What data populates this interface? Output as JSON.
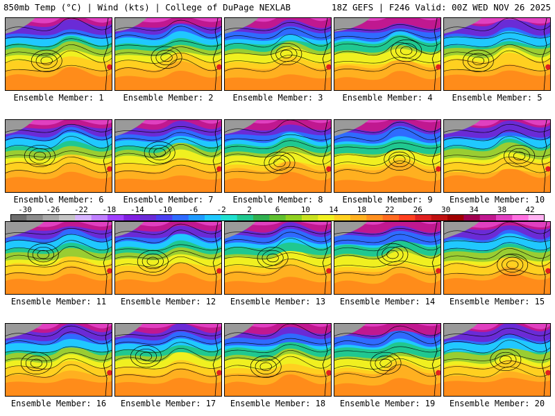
{
  "header": {
    "left": "850mb Temp (°C) | Wind (kts) | College of DuPage NEXLAB",
    "right": "18Z GEFS | F246 Valid: 00Z WED NOV 26 2025"
  },
  "members": [
    {
      "label": "Ensemble Member: 1"
    },
    {
      "label": "Ensemble Member: 2"
    },
    {
      "label": "Ensemble Member: 3"
    },
    {
      "label": "Ensemble Member: 4"
    },
    {
      "label": "Ensemble Member: 5"
    },
    {
      "label": "Ensemble Member: 6"
    },
    {
      "label": "Ensemble Member: 7"
    },
    {
      "label": "Ensemble Member: 8"
    },
    {
      "label": "Ensemble Member: 9"
    },
    {
      "label": "Ensemble Member: 10"
    },
    {
      "label": "Ensemble Member: 11"
    },
    {
      "label": "Ensemble Member: 12"
    },
    {
      "label": "Ensemble Member: 13"
    },
    {
      "label": "Ensemble Member: 14"
    },
    {
      "label": "Ensemble Member: 15"
    },
    {
      "label": "Ensemble Member: 16"
    },
    {
      "label": "Ensemble Member: 17"
    },
    {
      "label": "Ensemble Member: 18"
    },
    {
      "label": "Ensemble Member: 19"
    },
    {
      "label": "Ensemble Member: 20"
    }
  ],
  "colorbar": {
    "ticks": [
      "-30",
      "-26",
      "-22",
      "-18",
      "-14",
      "-10",
      "-6",
      "-2",
      "2",
      "6",
      "10",
      "14",
      "18",
      "22",
      "26",
      "30",
      "34",
      "38",
      "42"
    ],
    "colors": [
      "#6e6e6e",
      "#8c8c8c",
      "#a8a8a8",
      "#c4c4c4",
      "#d6b4ff",
      "#c080ff",
      "#a040ff",
      "#8020e0",
      "#6a2bd6",
      "#4b3ff0",
      "#2f6bff",
      "#1f9bff",
      "#20c8ff",
      "#20e0d0",
      "#20c890",
      "#30b050",
      "#60c030",
      "#90d020",
      "#c8e020",
      "#f0f020",
      "#ffd020",
      "#ffb020",
      "#ff9020",
      "#ff6a20",
      "#ff4020",
      "#e02020",
      "#c01010",
      "#a00000",
      "#a00050",
      "#c01890",
      "#e040c0",
      "#ff70e0",
      "#ffb0f0"
    ]
  }
}
